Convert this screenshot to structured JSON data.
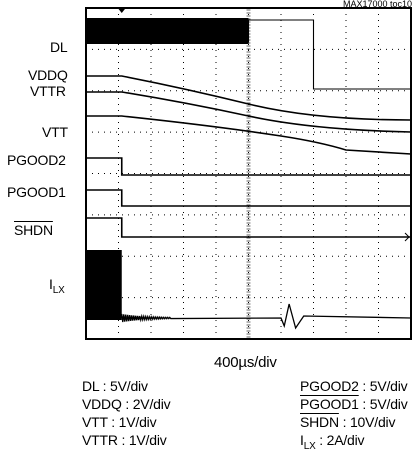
{
  "figure_id": "MAX17000 toc10",
  "chart_data": {
    "type": "line",
    "title": "",
    "time_axis": {
      "label": "400µs/div",
      "divisions": 10
    },
    "grid": {
      "horizontal_divisions": 8,
      "vertical_divisions": 10,
      "style": "dotted"
    },
    "channel_labels": {
      "dl": "DL",
      "vddq": "VDDQ",
      "vttr": "VTTR",
      "vtt": "VTT",
      "pgood2": "PGOOD2",
      "pgood1": "PGOOD1",
      "shdn": "SHDN",
      "ilx_main": "I",
      "ilx_sub": "LX"
    },
    "scales": {
      "dl": "DL : 5V/div",
      "vddq": "VDDQ : 2V/div",
      "vtt": "VTT : 1V/div",
      "vttr": "VTTR : 1V/div",
      "pgood2": "PGOOD2 : 5V/div",
      "pgood1_name": "PGOOD1",
      "pgood1_rest": " : 5V/div",
      "shdn_name": "SHDN",
      "shdn_rest": " : 10V/div",
      "ilx_main": "I",
      "ilx_sub": "LX",
      "ilx_rest": " : 2A/div"
    },
    "series": [
      {
        "name": "DL",
        "x": [
          0,
          3.5,
          3.6,
          5.0,
          5.01,
          10.0
        ],
        "y": [
          1,
          1,
          1,
          1,
          0,
          0
        ],
        "note_pulses_until_div": 5.0
      },
      {
        "name": "VDDQ",
        "x": [
          0,
          1.1,
          5.0,
          10.0
        ],
        "y": [
          1.2,
          1.2,
          0.75,
          0.55
        ]
      },
      {
        "name": "VTTR",
        "x": [
          0,
          1.1,
          5.0,
          10.0
        ],
        "y": [
          0.8,
          0.8,
          0.4,
          0.15
        ]
      },
      {
        "name": "VTT",
        "x": [
          0,
          1.1,
          5.0,
          6.0,
          7.0,
          10.0
        ],
        "y": [
          1.0,
          1.0,
          0.6,
          0.45,
          0.0,
          -0.4
        ]
      },
      {
        "name": "PGOOD2",
        "x": [
          0,
          1.1,
          1.11,
          10.0
        ],
        "y": [
          1,
          1,
          0,
          0
        ]
      },
      {
        "name": "PGOOD1",
        "x": [
          0,
          1.1,
          1.11,
          10.0
        ],
        "y": [
          1,
          1,
          0,
          0
        ]
      },
      {
        "name": "SHDN",
        "x": [
          0,
          1.1,
          1.11,
          10.0
        ],
        "y": [
          1,
          1,
          0,
          0
        ]
      },
      {
        "name": "ILX",
        "x": [
          0,
          1.1,
          1.15,
          6.2,
          6.5,
          10.0
        ],
        "y": [
          2.5,
          2.5,
          0,
          0,
          0,
          0
        ],
        "note_ringing_at_div": 6.3
      }
    ]
  }
}
